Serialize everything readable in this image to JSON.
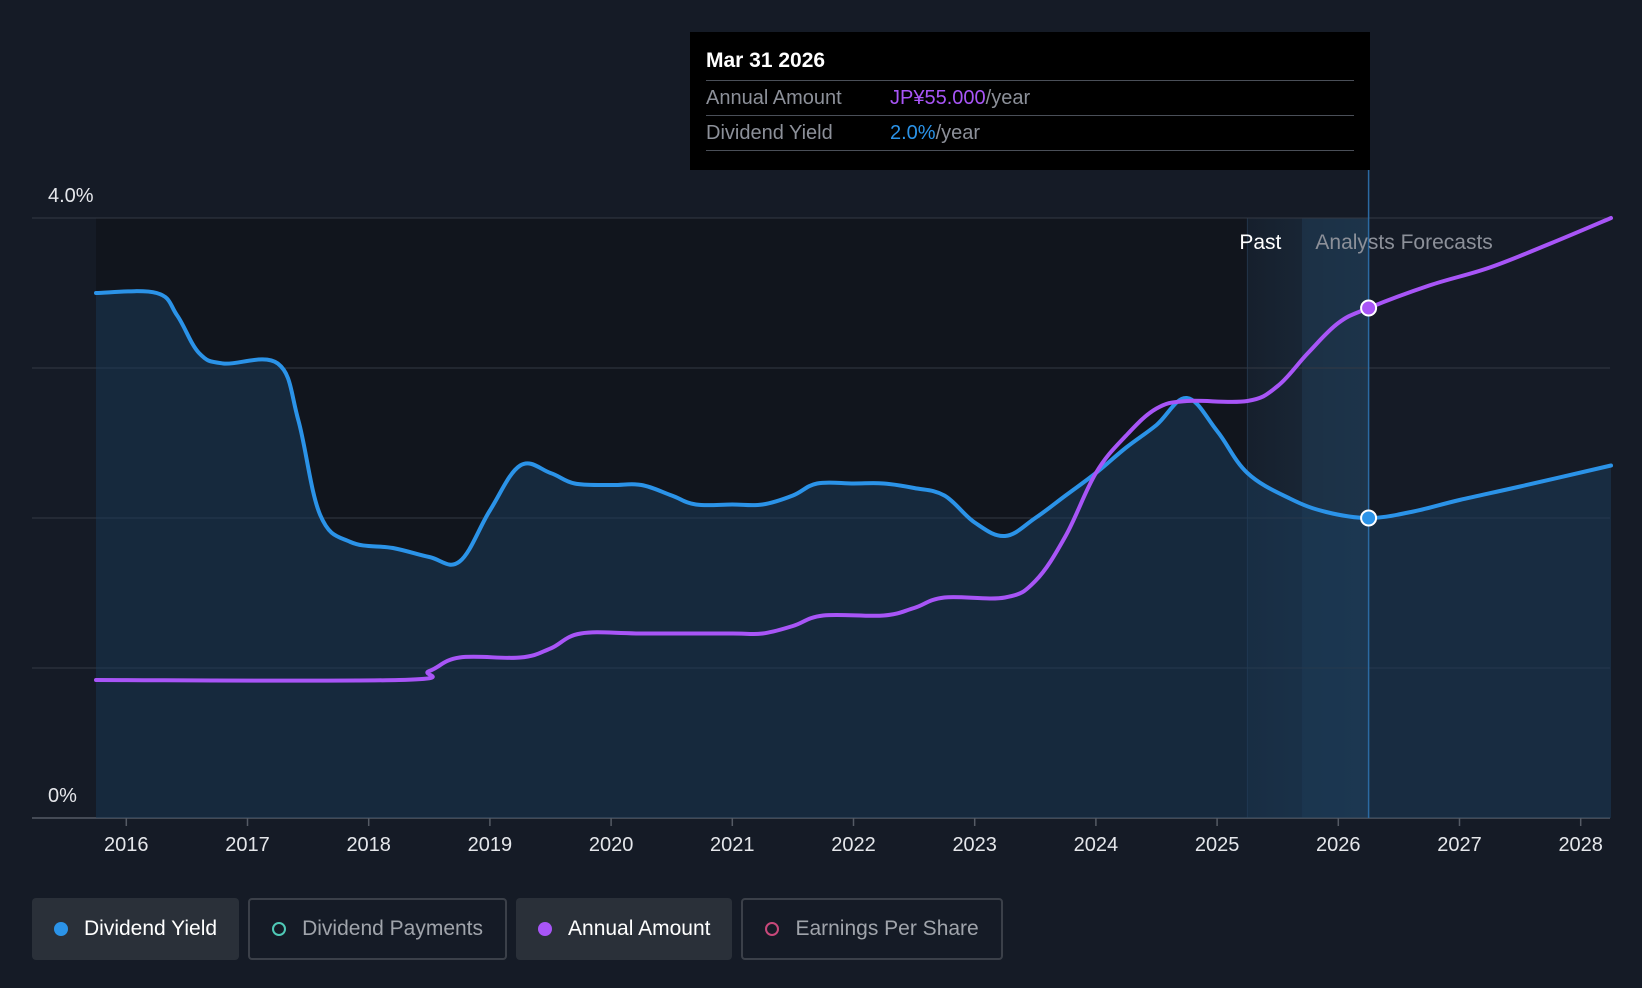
{
  "tooltip": {
    "date": "Mar 31 2026",
    "rows": [
      {
        "label": "Annual Amount",
        "value": "JP¥55.000",
        "unit": "/year",
        "color": "#a855f7"
      },
      {
        "label": "Dividend Yield",
        "value": "2.0%",
        "unit": "/year",
        "color": "#2b93e8"
      }
    ]
  },
  "legend": [
    {
      "label": "Dividend Yield",
      "color": "#2b93e8",
      "active": true,
      "filled": true
    },
    {
      "label": "Dividend Payments",
      "color": "#4fc9b6",
      "active": false,
      "filled": false
    },
    {
      "label": "Annual Amount",
      "color": "#a855f7",
      "active": true,
      "filled": true
    },
    {
      "label": "Earnings Per Share",
      "color": "#c8487a",
      "active": false,
      "filled": false
    }
  ],
  "chart_data": {
    "type": "line",
    "ylabel_top": "4.0%",
    "ylabel_bottom": "0%",
    "ylim": [
      0,
      4.0
    ],
    "xlim": [
      2015.72,
      2028.25
    ],
    "x_ticks": [
      "2016",
      "2017",
      "2018",
      "2019",
      "2020",
      "2021",
      "2022",
      "2023",
      "2024",
      "2025",
      "2026",
      "2027",
      "2028"
    ],
    "regions": {
      "past_label": "Past",
      "forecast_label": "Analysts Forecasts",
      "past_end": 2025.25,
      "fade_start": 2025.7,
      "forecast_start": 2026.25
    },
    "highlight_x": 2026.25,
    "series": [
      {
        "name": "Dividend Yield",
        "color": "#2b93e8",
        "fill": true,
        "points": [
          [
            2015.75,
            3.5
          ],
          [
            2016.25,
            3.5
          ],
          [
            2016.42,
            3.35
          ],
          [
            2016.6,
            3.1
          ],
          [
            2016.8,
            3.03
          ],
          [
            2017.25,
            3.03
          ],
          [
            2017.42,
            2.65
          ],
          [
            2017.6,
            2.02
          ],
          [
            2017.85,
            1.84
          ],
          [
            2018.2,
            1.8
          ],
          [
            2018.5,
            1.74
          ],
          [
            2018.75,
            1.71
          ],
          [
            2019.0,
            2.05
          ],
          [
            2019.25,
            2.35
          ],
          [
            2019.5,
            2.3
          ],
          [
            2019.7,
            2.23
          ],
          [
            2020.0,
            2.22
          ],
          [
            2020.25,
            2.22
          ],
          [
            2020.5,
            2.15
          ],
          [
            2020.7,
            2.09
          ],
          [
            2021.0,
            2.09
          ],
          [
            2021.25,
            2.09
          ],
          [
            2021.5,
            2.15
          ],
          [
            2021.7,
            2.23
          ],
          [
            2022.0,
            2.23
          ],
          [
            2022.25,
            2.23
          ],
          [
            2022.5,
            2.2
          ],
          [
            2022.75,
            2.15
          ],
          [
            2023.0,
            1.97
          ],
          [
            2023.25,
            1.88
          ],
          [
            2023.5,
            2.0
          ],
          [
            2023.75,
            2.15
          ],
          [
            2024.0,
            2.3
          ],
          [
            2024.25,
            2.47
          ],
          [
            2024.5,
            2.62
          ],
          [
            2024.75,
            2.8
          ],
          [
            2025.0,
            2.58
          ],
          [
            2025.25,
            2.3
          ],
          [
            2025.6,
            2.13
          ],
          [
            2025.9,
            2.04
          ],
          [
            2026.25,
            2.0
          ],
          [
            2026.6,
            2.04
          ],
          [
            2027.0,
            2.12
          ],
          [
            2027.5,
            2.21
          ],
          [
            2028.25,
            2.35
          ]
        ]
      },
      {
        "name": "Annual Amount",
        "color": "#a855f7",
        "fill": false,
        "points": [
          [
            2015.75,
            0.92
          ],
          [
            2018.25,
            0.92
          ],
          [
            2018.5,
            0.98
          ],
          [
            2018.75,
            1.07
          ],
          [
            2019.25,
            1.07
          ],
          [
            2019.5,
            1.13
          ],
          [
            2019.75,
            1.23
          ],
          [
            2020.25,
            1.23
          ],
          [
            2021.0,
            1.23
          ],
          [
            2021.25,
            1.23
          ],
          [
            2021.5,
            1.28
          ],
          [
            2021.75,
            1.35
          ],
          [
            2022.25,
            1.35
          ],
          [
            2022.5,
            1.4
          ],
          [
            2022.75,
            1.47
          ],
          [
            2023.25,
            1.47
          ],
          [
            2023.5,
            1.58
          ],
          [
            2023.75,
            1.88
          ],
          [
            2024.0,
            2.3
          ],
          [
            2024.25,
            2.55
          ],
          [
            2024.5,
            2.73
          ],
          [
            2024.75,
            2.78
          ],
          [
            2025.25,
            2.78
          ],
          [
            2025.5,
            2.88
          ],
          [
            2025.75,
            3.1
          ],
          [
            2026.0,
            3.3
          ],
          [
            2026.25,
            3.4
          ],
          [
            2026.75,
            3.55
          ],
          [
            2027.25,
            3.67
          ],
          [
            2027.75,
            3.83
          ],
          [
            2028.25,
            4.0
          ]
        ]
      }
    ]
  }
}
